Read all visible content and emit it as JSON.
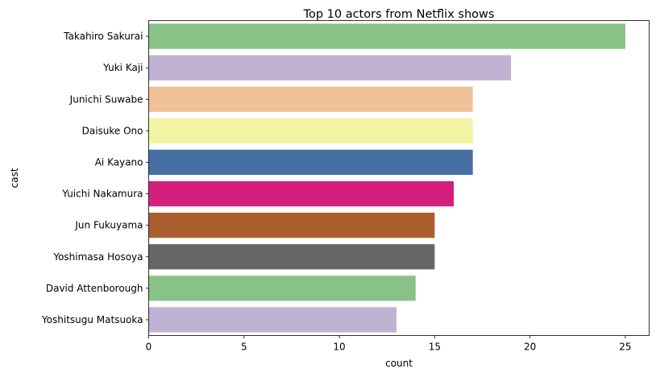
{
  "chart_data": {
    "type": "bar",
    "orientation": "horizontal",
    "title": "Top 10 actors from Netflix shows",
    "xlabel": "count",
    "ylabel": "cast",
    "xlim": [
      0,
      26.25
    ],
    "xticks": [
      0,
      5,
      10,
      15,
      20,
      25
    ],
    "grid": false,
    "categories": [
      "Takahiro Sakurai",
      "Yuki Kaji",
      "Junichi Suwabe",
      "Daisuke Ono",
      "Ai Kayano",
      "Yuichi Nakamura",
      "Jun Fukuyama",
      "Yoshimasa Hosoya",
      "David Attenborough",
      "Yoshitsugu Matsuoka"
    ],
    "values": [
      25,
      19,
      17,
      17,
      17,
      16,
      15,
      15,
      14,
      13
    ],
    "colors": [
      "#89c287",
      "#c0b2d2",
      "#efc196",
      "#f2f4a3",
      "#4670a2",
      "#d41f7d",
      "#a9602e",
      "#666666",
      "#89c287",
      "#c0b2d2"
    ]
  }
}
